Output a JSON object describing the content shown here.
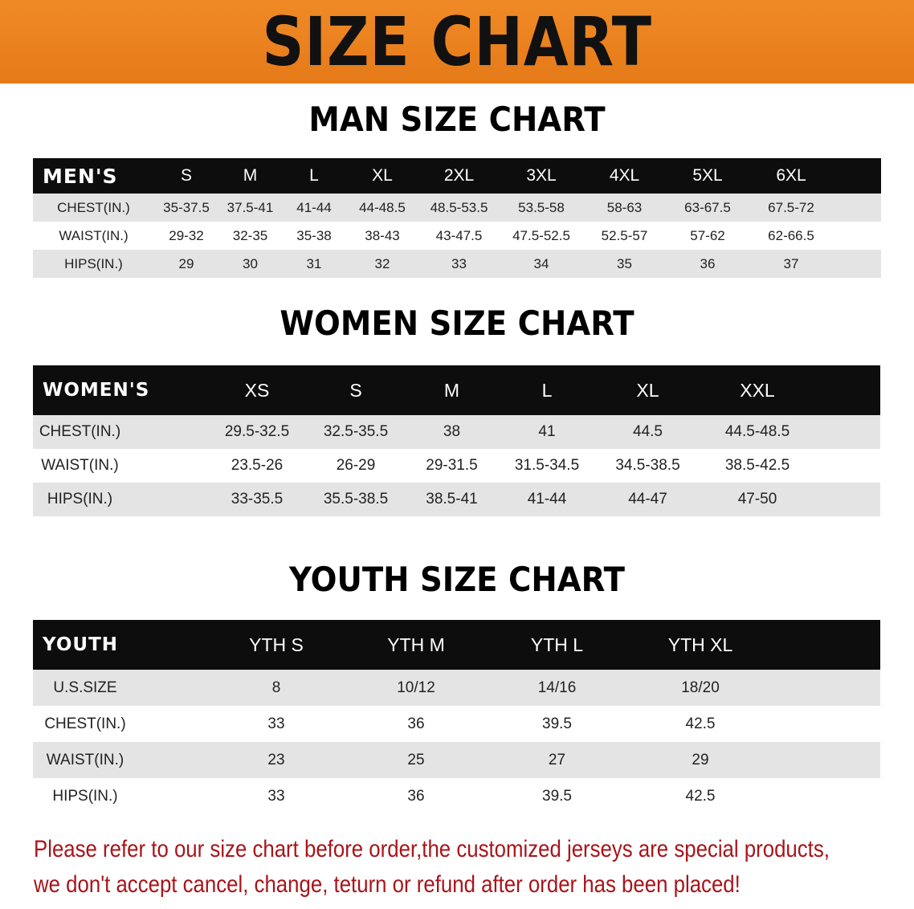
{
  "banner_title": "SIZE CHART",
  "men": {
    "title": "MAN SIZE CHART",
    "header": [
      "MEN'S",
      "S",
      "M",
      "L",
      "XL",
      "2XL",
      "3XL",
      "4XL",
      "5XL",
      "6XL"
    ],
    "rows": [
      [
        "CHEST(IN.)",
        "35-37.5",
        "37.5-41",
        "41-44",
        "44-48.5",
        "48.5-53.5",
        "53.5-58",
        "58-63",
        "63-67.5",
        "67.5-72"
      ],
      [
        "WAIST(IN.)",
        "29-32",
        "32-35",
        "35-38",
        "38-43",
        "43-47.5",
        "47.5-52.5",
        "52.5-57",
        "57-62",
        "62-66.5"
      ],
      [
        "HIPS(IN.)",
        "29",
        "30",
        "31",
        "32",
        "33",
        "34",
        "35",
        "36",
        "37"
      ]
    ]
  },
  "women": {
    "title": "WOMEN SIZE CHART",
    "header": [
      "WOMEN'S",
      "XS",
      "S",
      "M",
      "L",
      "XL",
      "XXL"
    ],
    "rows": [
      [
        "CHEST(IN.)",
        "29.5-32.5",
        "32.5-35.5",
        "38",
        "41",
        "44.5",
        "44.5-48.5"
      ],
      [
        "WAIST(IN.)",
        "23.5-26",
        "26-29",
        "29-31.5",
        "31.5-34.5",
        "34.5-38.5",
        "38.5-42.5"
      ],
      [
        "HIPS(IN.)",
        "33-35.5",
        "35.5-38.5",
        "38.5-41",
        "41-44",
        "44-47",
        "47-50"
      ]
    ]
  },
  "youth": {
    "title": "YOUTH SIZE CHART",
    "header": [
      "YOUTH",
      "YTH S",
      "YTH M",
      "YTH L",
      "YTH XL"
    ],
    "rows": [
      [
        "U.S.SIZE",
        "8",
        "10/12",
        "14/16",
        "18/20"
      ],
      [
        "CHEST(IN.)",
        "33",
        "36",
        "39.5",
        "42.5"
      ],
      [
        "WAIST(IN.)",
        "23",
        "25",
        "27",
        "29"
      ],
      [
        "HIPS(IN.)",
        "33",
        "36",
        "39.5",
        "42.5"
      ]
    ]
  },
  "note": {
    "line1": "Please refer to our size chart before order,the customized jerseys are special products,",
    "line2": "we don't accept cancel, change, teturn or refund after order has been placed!"
  },
  "colors": {
    "banner": "#e8801e",
    "header_row": "#0d0d0d",
    "stripe": "#e4e4e4",
    "note": "#a8141a"
  }
}
